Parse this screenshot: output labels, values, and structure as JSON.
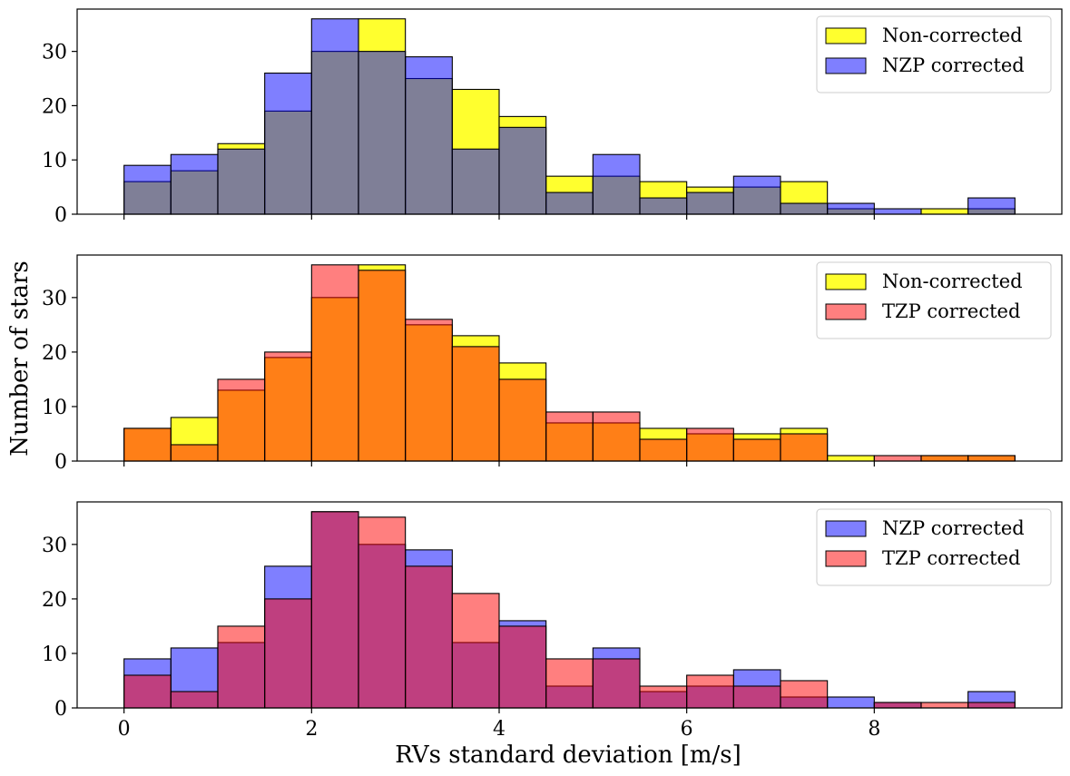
{
  "figure": {
    "ylabel": "Number of stars",
    "xlabel": "RVs standard deviation [m/s]"
  },
  "chart_data": [
    {
      "type": "bar",
      "title": "",
      "bin_width": 0.5,
      "bin_starts": [
        0,
        0.5,
        1,
        1.5,
        2,
        2.5,
        3,
        3.5,
        4,
        4.5,
        5,
        5.5,
        6,
        6.5,
        7,
        7.5,
        8,
        8.5,
        9
      ],
      "xlim": [
        -0.5,
        10
      ],
      "ylim": [
        0,
        37.8
      ],
      "xticks": [
        0,
        2,
        4,
        6,
        8
      ],
      "yticks": [
        0,
        10,
        20,
        30
      ],
      "show_xticklabels": false,
      "legend_position": "top-right",
      "series": [
        {
          "name": "Non-corrected",
          "color": "#ffff00",
          "values": [
            6,
            8,
            13,
            19,
            30,
            36,
            25,
            23,
            18,
            7,
            7,
            6,
            5,
            5,
            6,
            1,
            0,
            1,
            1
          ]
        },
        {
          "name": "NZP corrected",
          "color": "#0000ff",
          "values": [
            9,
            11,
            12,
            26,
            36,
            30,
            29,
            12,
            16,
            4,
            11,
            3,
            4,
            7,
            2,
            2,
            1,
            0,
            3
          ]
        }
      ]
    },
    {
      "type": "bar",
      "title": "",
      "bin_width": 0.5,
      "bin_starts": [
        0,
        0.5,
        1,
        1.5,
        2,
        2.5,
        3,
        3.5,
        4,
        4.5,
        5,
        5.5,
        6,
        6.5,
        7,
        7.5,
        8,
        8.5,
        9
      ],
      "xlim": [
        -0.5,
        10
      ],
      "ylim": [
        0,
        37.8
      ],
      "xticks": [
        0,
        2,
        4,
        6,
        8
      ],
      "yticks": [
        0,
        10,
        20,
        30
      ],
      "show_xticklabels": false,
      "legend_position": "top-right",
      "series": [
        {
          "name": "Non-corrected",
          "color": "#ffff00",
          "values": [
            6,
            8,
            13,
            19,
            30,
            36,
            25,
            23,
            18,
            7,
            7,
            6,
            5,
            5,
            6,
            1,
            0,
            1,
            1
          ]
        },
        {
          "name": "TZP corrected",
          "color": "#ff0000",
          "values": [
            6,
            3,
            15,
            20,
            36,
            35,
            26,
            21,
            15,
            9,
            9,
            4,
            6,
            4,
            5,
            0,
            1,
            1,
            1
          ]
        }
      ]
    },
    {
      "type": "bar",
      "title": "",
      "bin_width": 0.5,
      "bin_starts": [
        0,
        0.5,
        1,
        1.5,
        2,
        2.5,
        3,
        3.5,
        4,
        4.5,
        5,
        5.5,
        6,
        6.5,
        7,
        7.5,
        8,
        8.5,
        9
      ],
      "xlim": [
        -0.5,
        10
      ],
      "ylim": [
        0,
        37.8
      ],
      "xticks": [
        0,
        2,
        4,
        6,
        8
      ],
      "yticks": [
        0,
        10,
        20,
        30
      ],
      "show_xticklabels": true,
      "legend_position": "top-right",
      "series": [
        {
          "name": "NZP corrected",
          "color": "#0000ff",
          "values": [
            9,
            11,
            12,
            26,
            36,
            30,
            29,
            12,
            16,
            4,
            11,
            3,
            4,
            7,
            2,
            2,
            1,
            0,
            3
          ]
        },
        {
          "name": "TZP corrected",
          "color": "#ff0000",
          "values": [
            6,
            3,
            15,
            20,
            36,
            35,
            26,
            21,
            15,
            9,
            9,
            4,
            6,
            4,
            5,
            0,
            1,
            1,
            1
          ]
        }
      ]
    }
  ]
}
